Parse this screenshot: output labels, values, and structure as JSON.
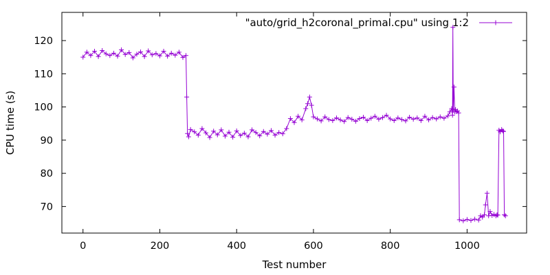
{
  "chart_data": {
    "type": "line",
    "title": "",
    "xlabel": "Test number",
    "ylabel": "CPU time (s)",
    "xlim": [
      -55,
      1155
    ],
    "ylim": [
      62,
      128.5
    ],
    "xticks": [
      0,
      200,
      400,
      600,
      800,
      1000
    ],
    "yticks": [
      70,
      80,
      90,
      100,
      110,
      120
    ],
    "grid": false,
    "legend_position": "top-right",
    "colors": {
      "series": "#9400d3",
      "axis": "#000000"
    },
    "series": [
      {
        "name": "\"auto/grid_h2coronal_primal.cpu\" using 1:2",
        "style": "linespoints-plus",
        "x": [
          0,
          10,
          20,
          30,
          40,
          50,
          60,
          70,
          80,
          90,
          100,
          110,
          120,
          130,
          140,
          150,
          160,
          170,
          180,
          190,
          200,
          210,
          220,
          230,
          240,
          250,
          260,
          268,
          270,
          272,
          275,
          280,
          290,
          300,
          310,
          320,
          330,
          340,
          350,
          360,
          370,
          380,
          390,
          400,
          410,
          420,
          430,
          440,
          450,
          460,
          470,
          480,
          490,
          500,
          510,
          520,
          530,
          540,
          550,
          560,
          570,
          580,
          585,
          590,
          595,
          600,
          610,
          620,
          630,
          640,
          650,
          660,
          670,
          680,
          690,
          700,
          710,
          720,
          730,
          740,
          750,
          760,
          770,
          780,
          790,
          800,
          810,
          820,
          830,
          840,
          850,
          860,
          870,
          880,
          890,
          900,
          910,
          920,
          930,
          940,
          950,
          955,
          960,
          962,
          963,
          964,
          966,
          968,
          970,
          972,
          975,
          978,
          980,
          990,
          1000,
          1010,
          1020,
          1030,
          1035,
          1040,
          1045,
          1048,
          1052,
          1056,
          1060,
          1065,
          1070,
          1075,
          1078,
          1080,
          1083,
          1086,
          1090,
          1093,
          1095,
          1097,
          1100
        ],
        "y": [
          115,
          116.5,
          115.5,
          116.8,
          115.2,
          117,
          116,
          115.5,
          116.2,
          115.3,
          117.2,
          115.8,
          116.4,
          114.8,
          115.9,
          116.6,
          115.2,
          116.9,
          115.7,
          116.1,
          115.4,
          116.8,
          115.3,
          116.2,
          115.6,
          116.5,
          114.9,
          115.5,
          103,
          92,
          91,
          93.2,
          92.5,
          91.5,
          93.5,
          92.2,
          90.8,
          92.7,
          91.6,
          93.1,
          91.2,
          92.4,
          90.9,
          92.8,
          91.4,
          92.1,
          91,
          93.1,
          92.3,
          91.3,
          92.6,
          91.8,
          92.9,
          91.5,
          92.3,
          91.9,
          93.5,
          96.5,
          95.3,
          97.2,
          96.1,
          99.5,
          101,
          103,
          100.5,
          97,
          96.4,
          95.8,
          97,
          96.2,
          95.9,
          96.7,
          96.1,
          95.6,
          96.8,
          96.3,
          95.7,
          96.5,
          96.9,
          95.9,
          96.6,
          97.2,
          96.3,
          96.8,
          97.5,
          96.4,
          95.9,
          96.7,
          96.2,
          95.8,
          96.9,
          96.3,
          96.7,
          95.9,
          97.2,
          96.1,
          96.8,
          96.4,
          97,
          96.6,
          97.3,
          98.5,
          99.5,
          97.5,
          124,
          99,
          106,
          98.5,
          99.2,
          98.6,
          98.8,
          98.2,
          66,
          65.7,
          66.1,
          65.8,
          66.2,
          65.9,
          67.2,
          66.8,
          67.5,
          70.5,
          74,
          67.2,
          68.5,
          67.3,
          67.6,
          67.2,
          67.5,
          67.4,
          93,
          92.5,
          93.2,
          92.8,
          92.6,
          67.5,
          67.2
        ]
      }
    ]
  }
}
